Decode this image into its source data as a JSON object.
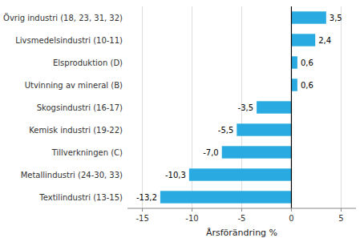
{
  "chart_data": {
    "type": "bar",
    "orientation": "horizontal",
    "xlabel": "Årsförändring %",
    "categories": [
      "Textilindustri (13-15)",
      "Metallindustri (24-30, 33)",
      "Tillverkningen (C)",
      "Kemisk industri (19-22)",
      "Skogsindustri (16-17)",
      "Utvinning av mineral (B)",
      "Elsproduktion (D)",
      "Livsmedelsindustri (10-11)",
      "Övrig industri (18, 23, 31, 32)"
    ],
    "values": [
      -13.2,
      -10.3,
      -7.0,
      -5.5,
      -3.5,
      0.6,
      0.6,
      2.4,
      3.5
    ],
    "value_labels": [
      "-13,2",
      "-10,3",
      "-7,0",
      "-5,5",
      "-3,5",
      "0,6",
      "0,6",
      "2,4",
      "3,5"
    ],
    "data_labels": true,
    "color": "#29abe2",
    "xlim": [
      -16.5,
      6.5
    ],
    "xticks": [
      -15,
      -10,
      -5,
      0,
      5
    ],
    "grid": true
  }
}
